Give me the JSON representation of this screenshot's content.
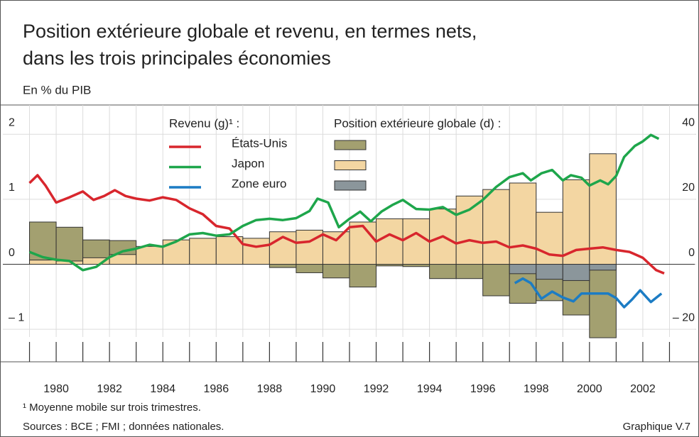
{
  "chart_data": {
    "type": "combo",
    "title": [
      "Position extérieure globale et revenu, en termes nets,",
      "dans les trois principales économies"
    ],
    "subtitle": "En % du PIB",
    "legend": {
      "line_heading": "Revenu (g)¹ :",
      "bar_heading": "Position extérieure globale (d) :"
    },
    "footnote": "¹ Moyenne mobile sur trois trimestres.",
    "sources": "Sources : BCE ; FMI ; données nationales.",
    "label": "Graphique V.7",
    "xlim": [
      1978,
      2004
    ],
    "xticks": [
      1980,
      1982,
      1984,
      1986,
      1988,
      1990,
      1992,
      1994,
      1996,
      1998,
      2000,
      2002
    ],
    "minor_xticks": [
      1979,
      1980,
      1981,
      1982,
      1983,
      1984,
      1985,
      1986,
      1987,
      1988,
      1989,
      1990,
      1991,
      1992,
      1993,
      1994,
      1995,
      1996,
      1997,
      1998,
      1999,
      2000,
      2001,
      2002,
      2003
    ],
    "ylim": [
      -1.5,
      2.45
    ],
    "yticks": [
      {
        "value": -1,
        "label": "– 1"
      },
      0,
      1,
      2
    ],
    "y2lim": [
      -30,
      49
    ],
    "y2ticks": [
      {
        "value": -20,
        "label": "– 20"
      },
      0,
      20,
      40
    ],
    "grid": true,
    "bar_x": [
      1979,
      1980,
      1981,
      1982,
      1983,
      1984,
      1985,
      1986,
      1987,
      1988,
      1989,
      1990,
      1991,
      1992,
      1993,
      1994,
      1995,
      1996,
      1997,
      1998,
      1999,
      2000
    ],
    "series": [
      {
        "name": "États-Unis",
        "line": {
          "color": "#d8262d",
          "x": [
            1979,
            1979.3,
            1979.6,
            1980,
            1980.5,
            1981,
            1981.4,
            1981.8,
            1982.2,
            1982.6,
            1983,
            1983.5,
            1984,
            1984.5,
            1985,
            1985.5,
            1986,
            1986.5,
            1987,
            1987.5,
            1988,
            1988.5,
            1989,
            1989.5,
            1990,
            1990.5,
            1991,
            1991.5,
            1992,
            1992.5,
            1993,
            1993.5,
            1994,
            1994.5,
            1995,
            1995.5,
            1996,
            1996.5,
            1997,
            1997.5,
            1998,
            1998.5,
            1999,
            1999.5,
            2000,
            2000.5,
            2001,
            2001.5,
            2002,
            2002.5,
            2002.8
          ],
          "values": [
            1.25,
            1.37,
            1.21,
            0.95,
            1.03,
            1.12,
            0.99,
            1.05,
            1.14,
            1.05,
            1.01,
            0.98,
            1.03,
            0.99,
            0.86,
            0.77,
            0.59,
            0.55,
            0.31,
            0.27,
            0.3,
            0.42,
            0.33,
            0.35,
            0.46,
            0.37,
            0.57,
            0.59,
            0.35,
            0.46,
            0.37,
            0.48,
            0.35,
            0.43,
            0.32,
            0.37,
            0.33,
            0.35,
            0.26,
            0.29,
            0.24,
            0.15,
            0.13,
            0.22,
            0.24,
            0.26,
            0.22,
            0.19,
            0.1,
            -0.09,
            -0.14
          ]
        },
        "bar": {
          "color": "#a3a070",
          "values": [
            13,
            11.4,
            7.5,
            7.3,
            4.5,
            3,
            2.5,
            1,
            0.5,
            -1,
            -2.6,
            -4.2,
            -7,
            -0.5,
            -0.7,
            -4.4,
            -4.4,
            -9.7,
            -12,
            -11.2,
            -15.6,
            -22.6
          ]
        }
      },
      {
        "name": "Japon",
        "line": {
          "color": "#1ea64b",
          "x": [
            1979,
            1979.5,
            1980,
            1980.5,
            1981,
            1981.5,
            1982,
            1982.5,
            1983,
            1983.5,
            1984,
            1984.5,
            1985,
            1985.5,
            1986,
            1986.5,
            1987,
            1987.5,
            1988,
            1988.5,
            1989,
            1989.5,
            1989.8,
            1990.2,
            1990.6,
            1991,
            1991.4,
            1991.8,
            1992.2,
            1992.6,
            1993,
            1993.5,
            1994,
            1994.5,
            1995,
            1995.5,
            1996,
            1996.5,
            1997,
            1997.5,
            1997.8,
            1998.2,
            1998.6,
            1999,
            1999.3,
            1999.7,
            2000,
            2000.4,
            2000.7,
            2001,
            2001.3,
            2001.7,
            2002,
            2002.3,
            2002.6
          ],
          "values": [
            0.19,
            0.11,
            0.07,
            0.05,
            -0.09,
            -0.04,
            0.11,
            0.2,
            0.24,
            0.3,
            0.27,
            0.35,
            0.46,
            0.48,
            0.44,
            0.46,
            0.59,
            0.68,
            0.7,
            0.68,
            0.71,
            0.82,
            1.01,
            0.95,
            0.57,
            0.7,
            0.81,
            0.66,
            0.81,
            0.91,
            0.99,
            0.85,
            0.84,
            0.88,
            0.76,
            0.84,
            0.99,
            1.19,
            1.34,
            1.4,
            1.29,
            1.4,
            1.45,
            1.29,
            1.37,
            1.33,
            1.21,
            1.29,
            1.23,
            1.36,
            1.65,
            1.82,
            1.89,
            1.99,
            1.93
          ]
        },
        "bar": {
          "color": "#f3d6a2",
          "values": [
            1.3,
            1,
            2,
            3,
            5.5,
            7.5,
            8,
            8.5,
            8,
            10,
            10.5,
            10,
            13,
            14,
            14,
            17,
            21,
            23,
            25,
            16,
            26,
            34
          ]
        }
      },
      {
        "name": "Zone euro",
        "line": {
          "color": "#1c7cc4",
          "x": [
            1997.2,
            1997.5,
            1997.8,
            1998.2,
            1998.6,
            1999,
            1999.4,
            1999.7,
            2000.2,
            2000.7,
            2001,
            2001.3,
            2001.6,
            2001.9,
            2002.3,
            2002.7
          ],
          "values": [
            -0.29,
            -0.22,
            -0.29,
            -0.53,
            -0.42,
            -0.51,
            -0.57,
            -0.45,
            -0.45,
            -0.45,
            -0.52,
            -0.66,
            -0.54,
            -0.4,
            -0.58,
            -0.45
          ]
        },
        "bar": {
          "color": "#8b969b",
          "values": [
            null,
            null,
            null,
            null,
            null,
            null,
            null,
            null,
            null,
            null,
            null,
            null,
            null,
            null,
            null,
            null,
            null,
            null,
            -2.9,
            -4.6,
            -5,
            -1.8
          ]
        }
      }
    ]
  }
}
